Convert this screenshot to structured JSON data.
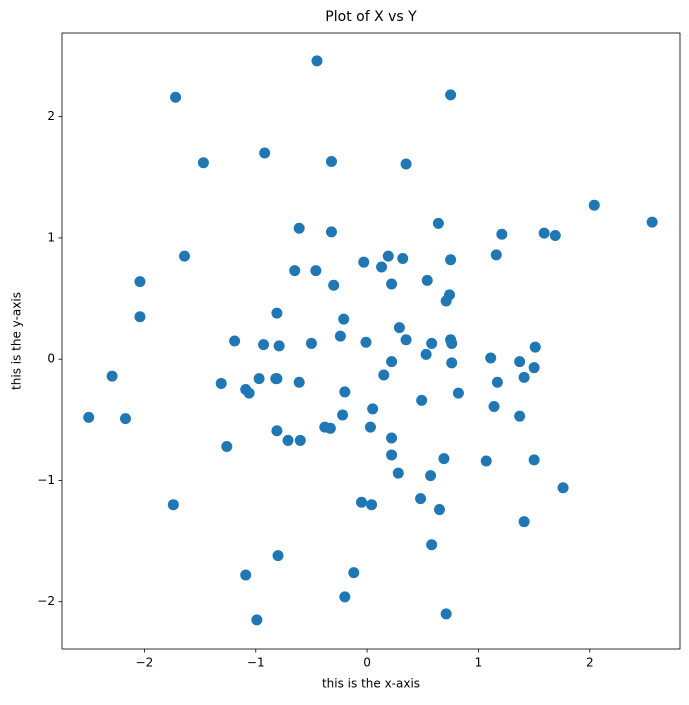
{
  "chart_data": {
    "type": "scatter",
    "title": "Plot of X vs Y",
    "x_label": "this is the x-axis",
    "y_label": "this is the y-axis",
    "color": "#1f77b4",
    "xlim": [
      -2.74,
      2.81
    ],
    "ylim": [
      -2.39,
      2.69
    ],
    "xticks": [
      {
        "value": -2,
        "label": "−2"
      },
      {
        "value": -1,
        "label": "−1"
      },
      0,
      1,
      2
    ],
    "yticks": [
      {
        "value": -2,
        "label": "−2"
      },
      {
        "value": -1,
        "label": "−1"
      },
      0,
      1,
      2
    ],
    "x": [
      -0.45,
      -1.72,
      0.75,
      -1.47,
      -0.92,
      -0.32,
      0.35,
      2.04,
      2.56,
      0.64,
      -0.61,
      -0.32,
      1.21,
      1.59,
      1.69,
      -1.64,
      0.19,
      0.32,
      1.16,
      -0.03,
      0.13,
      0.75,
      -0.65,
      -0.46,
      -2.04,
      0.54,
      -0.3,
      0.22,
      0.74,
      0.71,
      -2.04,
      -0.81,
      -0.21,
      0.29,
      -0.24,
      0.35,
      -1.19,
      -0.93,
      -0.79,
      -0.5,
      -0.01,
      0.58,
      0.75,
      0.76,
      1.51,
      0.53,
      1.11,
      1.37,
      0.22,
      0.76,
      1.5,
      -2.29,
      0.15,
      -0.97,
      -0.82,
      -0.81,
      -1.31,
      -0.61,
      1.41,
      1.17,
      -1.09,
      -1.06,
      -0.2,
      0.82,
      1.14,
      0.49,
      0.05,
      -2.5,
      -2.17,
      -0.22,
      1.37,
      0.03,
      -0.38,
      -0.33,
      -0.81,
      -0.71,
      -0.6,
      0.22,
      -1.26,
      0.22,
      0.69,
      1.07,
      1.5,
      0.28,
      0.57,
      1.76,
      0.48,
      -1.74,
      -0.05,
      0.04,
      0.65,
      1.41,
      0.58,
      -0.8,
      -0.12,
      -1.09,
      -0.2,
      0.71,
      -0.99
    ],
    "y": [
      2.46,
      2.16,
      2.18,
      1.62,
      1.7,
      1.63,
      1.61,
      1.27,
      1.13,
      1.12,
      1.08,
      1.05,
      1.03,
      1.04,
      1.02,
      0.85,
      0.85,
      0.83,
      0.86,
      0.8,
      0.76,
      0.82,
      0.73,
      0.73,
      0.64,
      0.65,
      0.61,
      0.62,
      0.53,
      0.48,
      0.35,
      0.38,
      0.33,
      0.26,
      0.19,
      0.16,
      0.15,
      0.12,
      0.11,
      0.13,
      0.14,
      0.13,
      0.16,
      0.13,
      0.1,
      0.04,
      0.01,
      -0.02,
      -0.02,
      -0.03,
      -0.07,
      -0.14,
      -0.13,
      -0.16,
      -0.16,
      -0.16,
      -0.2,
      -0.19,
      -0.15,
      -0.19,
      -0.25,
      -0.28,
      -0.27,
      -0.28,
      -0.39,
      -0.34,
      -0.41,
      -0.48,
      -0.49,
      -0.46,
      -0.47,
      -0.56,
      -0.56,
      -0.57,
      -0.59,
      -0.67,
      -0.67,
      -0.65,
      -0.72,
      -0.79,
      -0.82,
      -0.84,
      -0.83,
      -0.94,
      -0.96,
      -1.06,
      -1.15,
      -1.2,
      -1.18,
      -1.2,
      -1.24,
      -1.34,
      -1.53,
      -1.62,
      -1.76,
      -1.78,
      -1.96,
      -2.1,
      -2.15
    ]
  }
}
